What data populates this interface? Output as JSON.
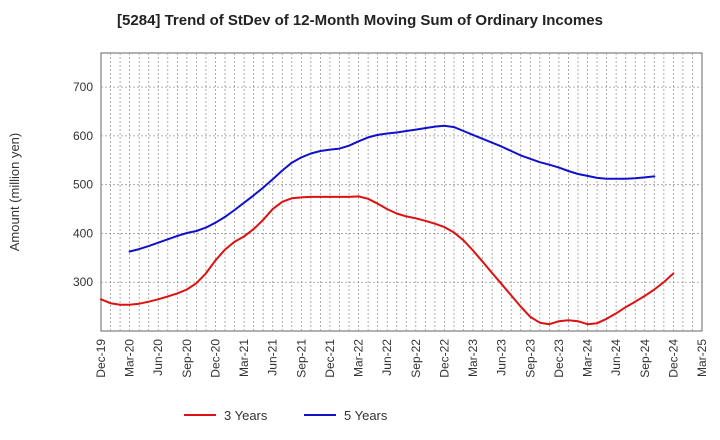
{
  "chart_data": {
    "type": "line",
    "title": "[5284]  Trend of StDev of 12-Month Moving Sum of Ordinary Incomes",
    "xlabel": "",
    "ylabel": "Amount (million yen)",
    "x": [
      "Dec-19",
      "Jan-20",
      "Feb-20",
      "Mar-20",
      "Apr-20",
      "May-20",
      "Jun-20",
      "Jul-20",
      "Aug-20",
      "Sep-20",
      "Oct-20",
      "Nov-20",
      "Dec-20",
      "Jan-21",
      "Feb-21",
      "Mar-21",
      "Apr-21",
      "May-21",
      "Jun-21",
      "Jul-21",
      "Aug-21",
      "Sep-21",
      "Oct-21",
      "Nov-21",
      "Dec-21",
      "Jan-22",
      "Feb-22",
      "Mar-22",
      "Apr-22",
      "May-22",
      "Jun-22",
      "Jul-22",
      "Aug-22",
      "Sep-22",
      "Oct-22",
      "Nov-22",
      "Dec-22",
      "Jan-23",
      "Feb-23",
      "Mar-23",
      "Apr-23",
      "May-23",
      "Jun-23",
      "Jul-23",
      "Aug-23",
      "Sep-23",
      "Oct-23",
      "Nov-23",
      "Dec-23",
      "Jan-24",
      "Feb-24",
      "Mar-24",
      "Apr-24",
      "May-24",
      "Jun-24",
      "Jul-24",
      "Aug-24",
      "Sep-24",
      "Oct-24",
      "Nov-24",
      "Dec-24"
    ],
    "x_tick_labels": [
      "Dec-19",
      "Mar-20",
      "Jun-20",
      "Sep-20",
      "Dec-20",
      "Mar-21",
      "Jun-21",
      "Sep-21",
      "Dec-21",
      "Mar-22",
      "Jun-22",
      "Sep-22",
      "Dec-22",
      "Mar-23",
      "Jun-23",
      "Sep-23",
      "Dec-23",
      "Mar-24",
      "Jun-24",
      "Sep-24",
      "Dec-24",
      "Mar-25"
    ],
    "y_ticks": [
      300,
      400,
      500,
      600,
      700
    ],
    "ylim": [
      200,
      770
    ],
    "grid": true,
    "legend_position": "bottom",
    "series": [
      {
        "name": "3 Years",
        "color": "#dd1111",
        "values": [
          265,
          257,
          254,
          254,
          256,
          260,
          265,
          271,
          277,
          285,
          298,
          318,
          345,
          367,
          383,
          394,
          409,
          428,
          450,
          465,
          472,
          474,
          475,
          475,
          475,
          475,
          475,
          476,
          471,
          461,
          450,
          441,
          435,
          431,
          426,
          420,
          413,
          402,
          386,
          365,
          342,
          319,
          296,
          273,
          250,
          229,
          217,
          214,
          220,
          222,
          220,
          214,
          216,
          225,
          236,
          249,
          260,
          272,
          285,
          300,
          318
        ]
      },
      {
        "name": "5 Years",
        "color": "#1111cc",
        "values": [
          null,
          null,
          null,
          363,
          368,
          374,
          381,
          388,
          395,
          401,
          405,
          412,
          422,
          434,
          448,
          463,
          478,
          494,
          511,
          529,
          545,
          556,
          564,
          569,
          572,
          574,
          580,
          589,
          597,
          602,
          605,
          607,
          610,
          613,
          616,
          619,
          621,
          618,
          610,
          602,
          594,
          586,
          578,
          569,
          560,
          553,
          546,
          541,
          535,
          528,
          522,
          518,
          514,
          512,
          512,
          512,
          513,
          515,
          517,
          null,
          null
        ],
        "_note_placeholder": null
      }
    ]
  }
}
